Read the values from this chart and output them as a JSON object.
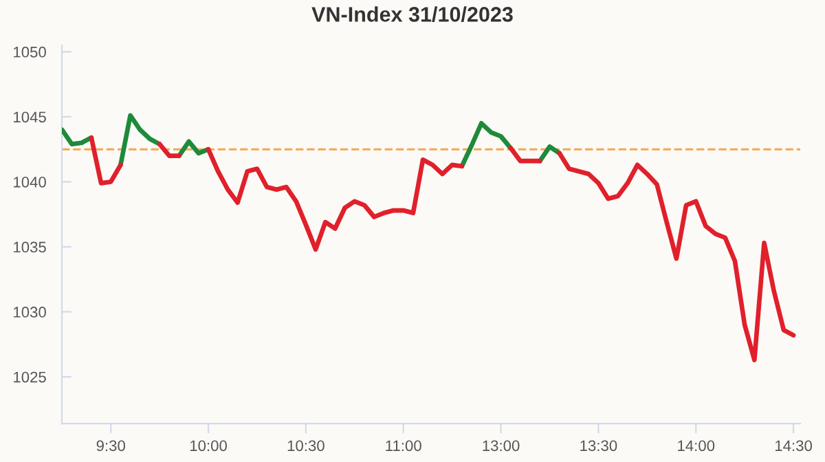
{
  "chart_data": {
    "type": "line",
    "title": "VN-Index 31/10/2023",
    "categories": [
      null,
      null,
      null,
      null,
      null,
      "9:30",
      null,
      null,
      null,
      null,
      null,
      null,
      null,
      null,
      null,
      "10:00",
      null,
      null,
      null,
      null,
      null,
      null,
      null,
      null,
      null,
      "10:30",
      null,
      null,
      null,
      null,
      null,
      null,
      null,
      null,
      null,
      "11:00",
      null,
      null,
      null,
      null,
      null,
      null,
      null,
      null,
      null,
      "13:00",
      null,
      null,
      null,
      null,
      null,
      null,
      null,
      null,
      null,
      "13:30",
      null,
      null,
      null,
      null,
      null,
      null,
      null,
      null,
      null,
      "14:00",
      null,
      null,
      null,
      null,
      null,
      null,
      null,
      null,
      null,
      "14:30"
    ],
    "series": [
      {
        "color": "#1e8a3a",
        "values": [
          1044.0,
          1042.9,
          1043.0,
          1043.4,
          null,
          null,
          1041.3,
          1045.1,
          1044.0,
          1043.3,
          1042.9,
          null,
          1042.0,
          1043.1,
          1042.2,
          1042.5,
          null,
          null,
          null,
          null,
          null,
          null,
          null,
          null,
          null,
          null,
          null,
          null,
          null,
          null,
          null,
          null,
          null,
          null,
          null,
          null,
          null,
          null,
          null,
          null,
          null,
          1041.2,
          1042.8,
          1044.5,
          1043.8,
          1043.5,
          1042.6,
          null,
          null,
          1041.6,
          1042.7,
          1042.2,
          null,
          null,
          null,
          null,
          null,
          null,
          null,
          null,
          null,
          null,
          null,
          null,
          null,
          null,
          null,
          null,
          null,
          null,
          null,
          null,
          null,
          null,
          null,
          null
        ]
      },
      {
        "color": "#e0202b",
        "values": [
          null,
          null,
          null,
          1043.4,
          1039.9,
          1040.0,
          1041.3,
          null,
          null,
          null,
          1042.9,
          1042.0,
          1042.0,
          null,
          null,
          1042.5,
          1040.8,
          1039.4,
          1038.4,
          1040.8,
          1041.0,
          1039.6,
          1039.4,
          1039.6,
          1038.5,
          1036.7,
          1034.8,
          1036.9,
          1036.4,
          1038.0,
          1038.5,
          1038.2,
          1037.3,
          1037.6,
          1037.8,
          1037.8,
          1037.6,
          1041.7,
          1041.3,
          1040.6,
          1041.3,
          1041.2,
          null,
          null,
          null,
          null,
          1042.6,
          1041.6,
          1041.6,
          1041.6,
          null,
          1042.2,
          1041.0,
          1040.8,
          1040.6,
          1039.9,
          1038.7,
          1038.9,
          1039.9,
          1041.3,
          1040.6,
          1039.8,
          1036.9,
          1034.1,
          1038.2,
          1038.5,
          1036.6,
          1036.0,
          1035.7,
          1033.9,
          1029.0,
          1026.3,
          1035.3,
          1031.6,
          1028.6,
          1028.2
        ]
      }
    ],
    "ylim": [
      1021.4,
      1050.5
    ],
    "yticks": [
      1025,
      1030,
      1035,
      1040,
      1045,
      1050
    ],
    "ref_lines": [
      {
        "axis": "y",
        "value": 1042.5,
        "color": "#f5a650",
        "line_style": "dashed"
      }
    ],
    "grid": false,
    "legend": false,
    "marker": "none",
    "line_style": "solid"
  }
}
